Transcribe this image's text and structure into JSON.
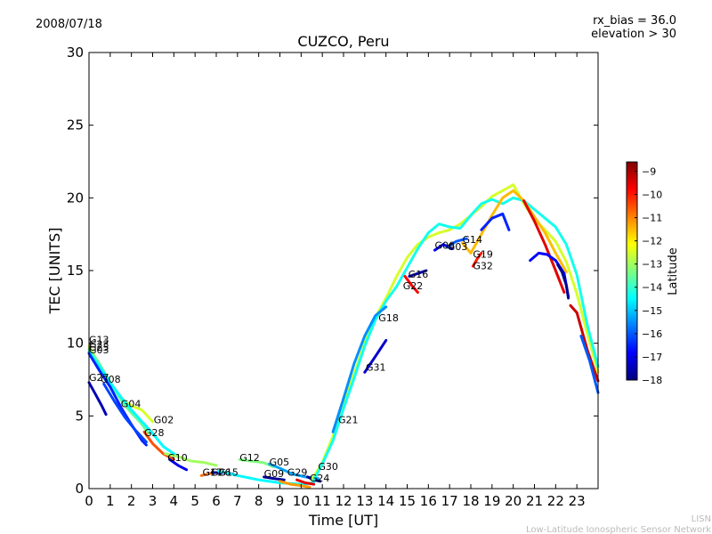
{
  "header": {
    "date": "2008/07/18",
    "rx_bias": "rx_bias = 36.0",
    "elevation": "elevation > 30"
  },
  "footer": {
    "org_short": "LISN",
    "org_long": "Low-Latitude Ionospheric Sensor Network"
  },
  "chart_data": {
    "type": "scatter",
    "title": "CUZCO, Peru",
    "xlabel": "Time [UT]",
    "ylabel": "TEC [UNITS]",
    "xlim": [
      0,
      24
    ],
    "ylim": [
      0,
      30
    ],
    "xticks": [
      0,
      1,
      2,
      3,
      4,
      5,
      6,
      7,
      8,
      9,
      10,
      11,
      12,
      13,
      14,
      15,
      16,
      17,
      18,
      19,
      20,
      21,
      22,
      23
    ],
    "yticks": [
      0,
      5,
      10,
      15,
      20,
      25,
      30
    ],
    "grid": false,
    "colorbar": {
      "label": "Latitude",
      "min": -18,
      "max": -8.6,
      "ticks": [
        -9,
        -10,
        -11,
        -12,
        -13,
        -14,
        -15,
        -16,
        -17,
        -18
      ],
      "colors": [
        "#00007f",
        "#0000ff",
        "#007fff",
        "#00ffff",
        "#7fff7f",
        "#ffff00",
        "#ff7f00",
        "#ff0000",
        "#7f0000"
      ]
    },
    "labels": [
      {
        "text": "G13",
        "x": 0.0,
        "y": 10.0
      },
      {
        "text": "G23",
        "x": 0.0,
        "y": 9.7
      },
      {
        "text": "G25",
        "x": 0.0,
        "y": 9.5
      },
      {
        "text": "G03",
        "x": 0.0,
        "y": 9.3
      },
      {
        "text": "G27",
        "x": 0.0,
        "y": 7.4
      },
      {
        "text": "G08",
        "x": 0.55,
        "y": 7.3
      },
      {
        "text": "G04",
        "x": 1.5,
        "y": 5.6
      },
      {
        "text": "G02",
        "x": 3.05,
        "y": 4.5
      },
      {
        "text": "G28",
        "x": 2.6,
        "y": 3.6
      },
      {
        "text": "G10",
        "x": 3.7,
        "y": 1.9
      },
      {
        "text": "G17",
        "x": 5.35,
        "y": 0.9
      },
      {
        "text": "G26",
        "x": 5.75,
        "y": 0.9
      },
      {
        "text": "G15",
        "x": 6.1,
        "y": 0.9
      },
      {
        "text": "G12",
        "x": 7.1,
        "y": 1.9
      },
      {
        "text": "G05",
        "x": 8.5,
        "y": 1.6
      },
      {
        "text": "G09",
        "x": 8.25,
        "y": 0.8
      },
      {
        "text": "G29",
        "x": 9.35,
        "y": 0.9
      },
      {
        "text": "G30",
        "x": 10.8,
        "y": 1.3
      },
      {
        "text": "G24",
        "x": 10.4,
        "y": 0.5
      },
      {
        "text": "G21",
        "x": 11.75,
        "y": 4.5
      },
      {
        "text": "G31",
        "x": 13.05,
        "y": 8.1
      },
      {
        "text": "G18",
        "x": 13.65,
        "y": 11.5
      },
      {
        "text": "G22",
        "x": 14.8,
        "y": 13.7
      },
      {
        "text": "G16",
        "x": 15.05,
        "y": 14.5
      },
      {
        "text": "G06",
        "x": 16.3,
        "y": 16.5
      },
      {
        "text": "G03",
        "x": 16.9,
        "y": 16.4
      },
      {
        "text": "G14",
        "x": 17.6,
        "y": 16.9
      },
      {
        "text": "G19",
        "x": 18.1,
        "y": 15.9
      },
      {
        "text": "G32",
        "x": 18.1,
        "y": 15.1
      }
    ],
    "series": [
      {
        "lat": -12.5,
        "x": [
          0,
          0.3,
          0.6,
          1,
          1.5,
          2,
          2.5,
          3
        ],
        "y": [
          9.8,
          9,
          8.2,
          7.2,
          6.2,
          5.7,
          5.4,
          4.6
        ]
      },
      {
        "lat": -13.5,
        "x": [
          0,
          0.4,
          0.8,
          1.2,
          1.6,
          2,
          2.4,
          2.8
        ],
        "y": [
          9.6,
          8.8,
          7.8,
          6.8,
          5.9,
          5.2,
          4.6,
          3.8
        ]
      },
      {
        "lat": -14.5,
        "x": [
          0,
          0.5,
          1,
          1.5,
          2,
          2.5,
          3,
          3.5,
          4.2
        ],
        "y": [
          9.4,
          8.4,
          7.3,
          6.3,
          5.4,
          4.6,
          3.8,
          2.9,
          2.2
        ]
      },
      {
        "lat": -16.5,
        "x": [
          0,
          0.5,
          1,
          1.5,
          2,
          2.5,
          2.7
        ],
        "y": [
          9.3,
          8.1,
          7,
          5.6,
          4.4,
          3.3,
          3.0
        ]
      },
      {
        "lat": -17.5,
        "x": [
          0,
          0.3,
          0.6,
          0.8
        ],
        "y": [
          7.3,
          6.5,
          5.7,
          5.1
        ]
      },
      {
        "lat": -16.2,
        "x": [
          0.7,
          1.2,
          1.7,
          2.2,
          2.7
        ],
        "y": [
          7.2,
          6.0,
          4.9,
          4.0,
          3.2
        ]
      },
      {
        "lat": -10.5,
        "x": [
          2.6,
          3.0,
          3.5,
          4.0
        ],
        "y": [
          3.9,
          3.1,
          2.4,
          2.0
        ]
      },
      {
        "lat": -13.0,
        "x": [
          3.6,
          4.2,
          4.8,
          5.4,
          6.0
        ],
        "y": [
          2.4,
          2.2,
          1.9,
          1.8,
          1.6
        ]
      },
      {
        "lat": -17.0,
        "x": [
          3.8,
          4.2,
          4.6
        ],
        "y": [
          2.0,
          1.6,
          1.3
        ]
      },
      {
        "lat": -10.8,
        "x": [
          5.3,
          5.6,
          5.9
        ],
        "y": [
          0.9,
          1.0,
          1.1
        ]
      },
      {
        "lat": -17.5,
        "x": [
          5.8,
          6.3,
          6.8
        ],
        "y": [
          1.1,
          1.1,
          1.0
        ]
      },
      {
        "lat": -14.5,
        "x": [
          6.1,
          7,
          8,
          9,
          10,
          10.6
        ],
        "y": [
          1.2,
          0.9,
          0.6,
          0.4,
          0.3,
          0.4
        ]
      },
      {
        "lat": -13.3,
        "x": [
          7.1,
          7.6,
          8.2,
          8.7
        ],
        "y": [
          2.0,
          1.9,
          1.8,
          1.5
        ]
      },
      {
        "lat": -15.3,
        "x": [
          8.5,
          9,
          9.6,
          10.2,
          10.8
        ],
        "y": [
          1.7,
          1.4,
          1.0,
          0.8,
          0.7
        ]
      },
      {
        "lat": -17.8,
        "x": [
          8.25,
          8.7,
          9.2
        ],
        "y": [
          0.8,
          0.7,
          0.6
        ]
      },
      {
        "lat": -11.2,
        "x": [
          9.0,
          9.5,
          10.0,
          10.4
        ],
        "y": [
          0.5,
          0.3,
          0.2,
          0.1
        ]
      },
      {
        "lat": -9.5,
        "x": [
          9.8,
          10.2,
          10.6
        ],
        "y": [
          0.6,
          0.4,
          0.3
        ]
      },
      {
        "lat": -17.8,
        "x": [
          10.3,
          10.6,
          10.9
        ],
        "y": [
          0.8,
          0.6,
          0.5
        ]
      },
      {
        "lat": -12.5,
        "x": [
          10.5,
          11,
          11.5,
          12,
          12.5,
          13,
          13.5,
          14,
          14.5,
          15,
          15.5,
          16,
          16.5,
          17,
          17.5,
          18,
          18.5,
          19,
          19.5,
          20,
          20.5,
          21,
          21.5,
          22,
          22.5,
          23,
          23.5,
          24
        ],
        "y": [
          0.6,
          1.8,
          3.6,
          5.8,
          7.9,
          10.0,
          11.8,
          13.1,
          14.6,
          15.9,
          16.8,
          17.3,
          17.6,
          17.8,
          18.2,
          18.8,
          19.4,
          20.1,
          20.5,
          20.9,
          19.6,
          18.5,
          17.8,
          17.0,
          15.6,
          13.4,
          10.6,
          8.0
        ]
      },
      {
        "lat": -14.3,
        "x": [
          10.6,
          11,
          11.5,
          12,
          12.5,
          13,
          13.5,
          14,
          14.5,
          15,
          15.5,
          16,
          16.5,
          17,
          17.5,
          18,
          18.5,
          19,
          19.5,
          20,
          20.5,
          21,
          21.5,
          22,
          22.5,
          23,
          23.5,
          24
        ],
        "y": [
          0.6,
          1.7,
          3.3,
          5.5,
          7.6,
          9.8,
          11.6,
          12.9,
          13.9,
          15.2,
          16.5,
          17.6,
          18.2,
          18.0,
          17.9,
          18.8,
          19.6,
          19.9,
          19.6,
          20.0,
          19.8,
          19.2,
          18.6,
          18.0,
          16.8,
          14.7,
          11.2,
          8.4
        ]
      },
      {
        "lat": -15.5,
        "x": [
          11.5,
          12,
          12.5,
          13,
          13.5,
          14
        ],
        "y": [
          3.9,
          6.2,
          8.6,
          10.5,
          11.9,
          12.5
        ]
      },
      {
        "lat": -17.3,
        "x": [
          13,
          13.5,
          14
        ],
        "y": [
          8.0,
          9.1,
          10.2
        ]
      },
      {
        "lat": -9.8,
        "x": [
          14.9,
          15.2,
          15.5
        ],
        "y": [
          14.6,
          14.0,
          13.5
        ]
      },
      {
        "lat": -17.6,
        "x": [
          15.1,
          15.5,
          15.9
        ],
        "y": [
          14.6,
          14.8,
          15.0
        ]
      },
      {
        "lat": -17.0,
        "x": [
          16.3,
          16.7,
          17.1
        ],
        "y": [
          16.4,
          16.8,
          16.5
        ]
      },
      {
        "lat": -16.0,
        "x": [
          16.9,
          17.3,
          17.8
        ],
        "y": [
          16.6,
          17.0,
          17.2
        ]
      },
      {
        "lat": -11.5,
        "x": [
          17.6,
          18.0,
          18.5,
          19.0,
          19.5,
          20,
          20.5,
          21,
          21.5,
          22,
          22.5
        ],
        "y": [
          16.9,
          16.2,
          17.5,
          18.8,
          20.0,
          20.5,
          19.8,
          18.7,
          17.6,
          16.2,
          14.9
        ]
      },
      {
        "lat": -10.0,
        "x": [
          18.1,
          18.3,
          18.5
        ],
        "y": [
          15.3,
          15.8,
          16.2
        ]
      },
      {
        "lat": -9.5,
        "x": [
          20.5,
          21.0,
          21.5,
          22,
          22.4
        ],
        "y": [
          19.8,
          18.4,
          16.8,
          15.0,
          13.5
        ]
      },
      {
        "lat": -16.5,
        "x": [
          18.5,
          19.0,
          19.5,
          19.8
        ],
        "y": [
          17.8,
          18.6,
          18.9,
          17.8
        ]
      },
      {
        "lat": -16.8,
        "x": [
          20.8,
          21.2,
          21.6,
          22,
          22.4,
          22.6
        ],
        "y": [
          15.7,
          16.2,
          16.1,
          15.7,
          14.8,
          13.2
        ]
      },
      {
        "lat": -17.8,
        "x": [
          22.1,
          22.3,
          22.5,
          22.6
        ],
        "y": [
          15.4,
          14.9,
          14.0,
          13.1
        ]
      },
      {
        "lat": -9.3,
        "x": [
          22.7,
          23.0,
          23.5,
          24
        ],
        "y": [
          12.6,
          12.1,
          9.5,
          7.4
        ]
      },
      {
        "lat": -16.0,
        "x": [
          23.2,
          23.6,
          24
        ],
        "y": [
          10.5,
          8.8,
          6.6
        ]
      }
    ]
  }
}
